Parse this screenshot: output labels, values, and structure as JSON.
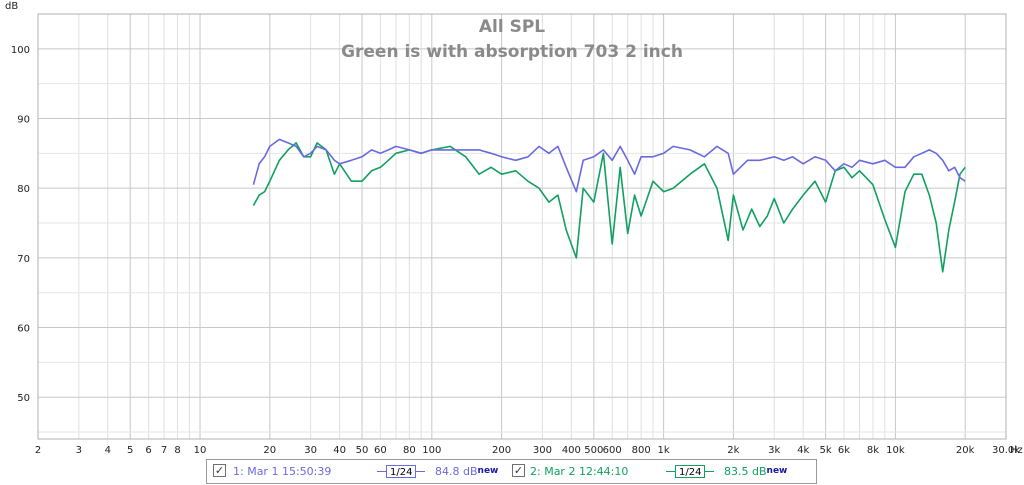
{
  "chart_data": {
    "type": "line",
    "title": "All SPL",
    "subtitle": "Green is with absorption 703 2 inch",
    "ylabel": "dB",
    "xlabel_unit": "Hz",
    "x_scale": "log",
    "xlim": [
      2,
      30000
    ],
    "ylim": [
      44,
      105
    ],
    "grid": true,
    "y_ticks": [
      50,
      60,
      70,
      80,
      90,
      100
    ],
    "x_tick_labels": [
      {
        "v": 2,
        "t": "2"
      },
      {
        "v": 3,
        "t": "3"
      },
      {
        "v": 4,
        "t": "4"
      },
      {
        "v": 5,
        "t": "5"
      },
      {
        "v": 6,
        "t": "6"
      },
      {
        "v": 7,
        "t": "7"
      },
      {
        "v": 8,
        "t": "8"
      },
      {
        "v": 10,
        "t": "10"
      },
      {
        "v": 20,
        "t": "20"
      },
      {
        "v": 30,
        "t": "30"
      },
      {
        "v": 40,
        "t": "40"
      },
      {
        "v": 50,
        "t": "50"
      },
      {
        "v": 60,
        "t": "60"
      },
      {
        "v": 80,
        "t": "80"
      },
      {
        "v": 100,
        "t": "100"
      },
      {
        "v": 200,
        "t": "200"
      },
      {
        "v": 300,
        "t": "300"
      },
      {
        "v": 400,
        "t": "400"
      },
      {
        "v": 500,
        "t": "500"
      },
      {
        "v": 600,
        "t": "600"
      },
      {
        "v": 800,
        "t": "800"
      },
      {
        "v": 1000,
        "t": "1k"
      },
      {
        "v": 2000,
        "t": "2k"
      },
      {
        "v": 3000,
        "t": "3k"
      },
      {
        "v": 4000,
        "t": "4k"
      },
      {
        "v": 5000,
        "t": "5k"
      },
      {
        "v": 6000,
        "t": "6k"
      },
      {
        "v": 8000,
        "t": "8k"
      },
      {
        "v": 10000,
        "t": "10k"
      },
      {
        "v": 20000,
        "t": "20k"
      },
      {
        "v": 30000,
        "t": "30.0k"
      }
    ],
    "series": [
      {
        "name": "1: Mar 1 15:50:39",
        "color": "#6a6ae0",
        "x": [
          17,
          18,
          19,
          20,
          22,
          24,
          26,
          28,
          30,
          32,
          35,
          38,
          40,
          45,
          50,
          55,
          60,
          65,
          70,
          80,
          90,
          100,
          120,
          140,
          160,
          180,
          200,
          230,
          260,
          290,
          320,
          350,
          380,
          420,
          450,
          500,
          550,
          600,
          650,
          700,
          750,
          800,
          900,
          1000,
          1100,
          1300,
          1500,
          1700,
          1900,
          2000,
          2300,
          2600,
          3000,
          3300,
          3600,
          4000,
          4500,
          5000,
          5500,
          6000,
          6500,
          7000,
          8000,
          9000,
          10000,
          11000,
          12000,
          13000,
          14000,
          15000,
          16000,
          17000,
          18000,
          19000,
          20000
        ],
        "y": [
          80.5,
          83.5,
          84.5,
          86,
          87,
          86.5,
          86,
          84.5,
          85,
          86,
          85.5,
          84,
          83.5,
          84,
          84.5,
          85.5,
          85,
          85.5,
          86,
          85.5,
          85,
          85.5,
          85.5,
          85.5,
          85.5,
          85,
          84.5,
          84,
          84.5,
          86,
          85,
          86,
          83,
          79.5,
          84,
          84.5,
          85.5,
          84,
          86,
          84,
          82,
          84.5,
          84.5,
          85,
          86,
          85.5,
          84.5,
          86,
          85,
          82,
          84,
          84,
          84.5,
          84,
          84.5,
          83.5,
          84.5,
          84,
          82.5,
          83.5,
          83,
          84,
          83.5,
          84,
          83,
          83,
          84.5,
          85,
          85.5,
          85,
          84,
          82.5,
          83,
          81.5,
          81
        ]
      },
      {
        "name": "2: Mar 2 12:44:10",
        "color": "#10a060",
        "x": [
          17,
          18,
          19,
          20,
          22,
          24,
          26,
          28,
          30,
          32,
          35,
          38,
          40,
          45,
          50,
          55,
          60,
          65,
          70,
          80,
          90,
          100,
          120,
          140,
          160,
          180,
          200,
          230,
          260,
          290,
          320,
          350,
          380,
          420,
          450,
          500,
          550,
          600,
          650,
          700,
          750,
          800,
          900,
          1000,
          1100,
          1300,
          1500,
          1700,
          1900,
          2000,
          2200,
          2400,
          2600,
          2800,
          3000,
          3300,
          3600,
          4000,
          4500,
          5000,
          5500,
          6000,
          6500,
          7000,
          8000,
          9000,
          10000,
          11000,
          12000,
          13000,
          14000,
          15000,
          16000,
          17000,
          18000,
          19000,
          20000
        ],
        "y": [
          77.5,
          79,
          79.5,
          81,
          84,
          85.5,
          86.5,
          84.5,
          84.5,
          86.5,
          85.5,
          82,
          83.5,
          81,
          81,
          82.5,
          83,
          84,
          85,
          85.5,
          85,
          85.5,
          86,
          84.5,
          82,
          83,
          82,
          82.5,
          81,
          80,
          78,
          79,
          74,
          70,
          80,
          78,
          85,
          72,
          83,
          73.5,
          79,
          76,
          81,
          79.5,
          80,
          82,
          83.5,
          80,
          72.5,
          79,
          74,
          77,
          74.5,
          76,
          78.5,
          75,
          77,
          79,
          81,
          78,
          82.5,
          83,
          81.5,
          82.5,
          80.5,
          75.5,
          71.5,
          79.5,
          82,
          82,
          79,
          75,
          68,
          74,
          78,
          82,
          83
        ]
      }
    ],
    "legend": [
      {
        "label": "1: Mar 1 15:50:39",
        "smoothing": "1/24",
        "avg": "84.8 dB",
        "tag": "new",
        "checked": true
      },
      {
        "label": "2: Mar 2 12:44:10",
        "smoothing": "1/24",
        "avg": "83.5 dB",
        "tag": "new",
        "checked": true
      }
    ]
  }
}
